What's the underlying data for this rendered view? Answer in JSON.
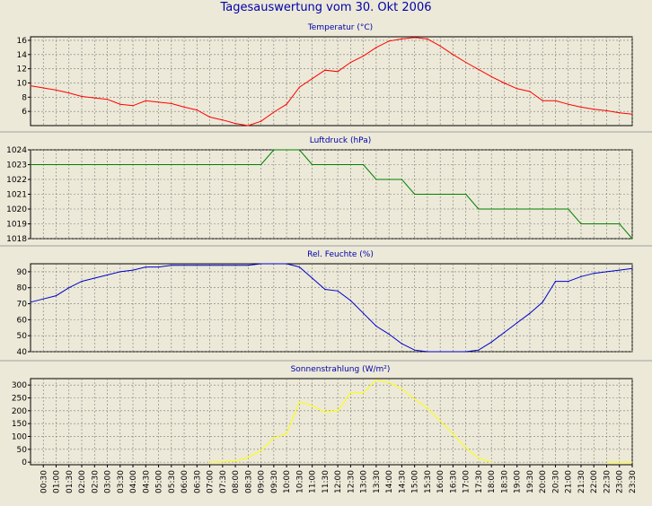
{
  "title": "Tagesauswertung vom 30. Okt 2006",
  "colors": {
    "title": "#0000AA",
    "background": "#ECE9D8",
    "grid": "#7A7A7A"
  },
  "x_tick_labels": [
    "00:30",
    "01:00",
    "01:30",
    "02:00",
    "02:30",
    "03:00",
    "03:30",
    "04:00",
    "04:30",
    "05:00",
    "05:30",
    "06:00",
    "06:30",
    "07:00",
    "07:30",
    "08:00",
    "08:30",
    "09:00",
    "09:30",
    "10:00",
    "10:30",
    "11:00",
    "11:30",
    "12:00",
    "12:30",
    "13:00",
    "13:30",
    "14:00",
    "14:30",
    "15:00",
    "15:30",
    "16:00",
    "16:30",
    "17:00",
    "17:30",
    "18:00",
    "18:30",
    "19:00",
    "19:30",
    "20:00",
    "20:30",
    "21:00",
    "21:30",
    "22:00",
    "22:30",
    "23:00",
    "23:30"
  ],
  "chart_data": [
    {
      "type": "line",
      "title": "Temperatur (°C)",
      "color": "#FF0000",
      "ylim": [
        4,
        16.5
      ],
      "yticks": [
        6,
        8,
        10,
        12,
        14,
        16
      ],
      "grid": true,
      "x": [
        "00:00",
        "00:30",
        "01:00",
        "01:30",
        "02:00",
        "02:30",
        "03:00",
        "03:30",
        "04:00",
        "04:30",
        "05:00",
        "05:30",
        "06:00",
        "06:30",
        "07:00",
        "07:30",
        "08:00",
        "08:30",
        "09:00",
        "09:30",
        "10:00",
        "10:30",
        "11:00",
        "11:30",
        "12:00",
        "12:30",
        "13:00",
        "13:30",
        "14:00",
        "14:30",
        "15:00",
        "15:30",
        "16:00",
        "16:30",
        "17:00",
        "17:30",
        "18:00",
        "18:30",
        "19:00",
        "19:30",
        "20:00",
        "20:30",
        "21:00",
        "21:30",
        "22:00",
        "22:30",
        "23:00",
        "23:30"
      ],
      "values": [
        9.6,
        9.3,
        9.0,
        8.6,
        8.1,
        7.9,
        7.7,
        7.0,
        6.8,
        7.5,
        7.3,
        7.1,
        6.6,
        6.2,
        5.2,
        4.8,
        4.3,
        4.0,
        4.6,
        5.9,
        7.0,
        9.4,
        10.6,
        11.8,
        11.6,
        12.9,
        13.8,
        15.0,
        15.9,
        16.2,
        16.4,
        16.2,
        15.2,
        14.0,
        12.9,
        11.9,
        10.9,
        10.0,
        9.2,
        8.8,
        7.5,
        7.5,
        7.0,
        6.6,
        6.3,
        6.1,
        5.8,
        5.6
      ]
    },
    {
      "type": "line",
      "title": "Luftdruck (hPa)",
      "color": "#008000",
      "ylim": [
        1018,
        1024
      ],
      "yticks": [
        1018,
        1019,
        1020,
        1021,
        1022,
        1023,
        1024
      ],
      "grid": true,
      "x": [
        "00:00",
        "00:30",
        "01:00",
        "01:30",
        "02:00",
        "02:30",
        "03:00",
        "03:30",
        "04:00",
        "04:30",
        "05:00",
        "05:30",
        "06:00",
        "06:30",
        "07:00",
        "07:30",
        "08:00",
        "08:30",
        "09:00",
        "09:30",
        "10:00",
        "10:30",
        "11:00",
        "11:30",
        "12:00",
        "12:30",
        "13:00",
        "13:30",
        "14:00",
        "14:30",
        "15:00",
        "15:30",
        "16:00",
        "16:30",
        "17:00",
        "17:30",
        "18:00",
        "18:30",
        "19:00",
        "19:30",
        "20:00",
        "20:30",
        "21:00",
        "21:30",
        "22:00",
        "22:30",
        "23:00",
        "23:30"
      ],
      "values": [
        1023,
        1023,
        1023,
        1023,
        1023,
        1023,
        1023,
        1023,
        1023,
        1023,
        1023,
        1023,
        1023,
        1023,
        1023,
        1023,
        1023,
        1023,
        1023,
        1024,
        1024,
        1024,
        1023,
        1023,
        1023,
        1023,
        1023,
        1022,
        1022,
        1022,
        1021,
        1021,
        1021,
        1021,
        1021,
        1020,
        1020,
        1020,
        1020,
        1020,
        1020,
        1020,
        1020,
        1019,
        1019,
        1019,
        1019,
        1018
      ]
    },
    {
      "type": "line",
      "title": "Rel. Feuchte (%)",
      "color": "#0000CC",
      "ylim": [
        40,
        95
      ],
      "yticks": [
        40,
        50,
        60,
        70,
        80,
        90
      ],
      "grid": true,
      "x": [
        "00:00",
        "00:30",
        "01:00",
        "01:30",
        "02:00",
        "02:30",
        "03:00",
        "03:30",
        "04:00",
        "04:30",
        "05:00",
        "05:30",
        "06:00",
        "06:30",
        "07:00",
        "07:30",
        "08:00",
        "08:30",
        "09:00",
        "09:30",
        "10:00",
        "10:30",
        "11:00",
        "11:30",
        "12:00",
        "12:30",
        "13:00",
        "13:30",
        "14:00",
        "14:30",
        "15:00",
        "15:30",
        "16:00",
        "16:30",
        "17:00",
        "17:30",
        "18:00",
        "18:30",
        "19:00",
        "19:30",
        "20:00",
        "20:30",
        "21:00",
        "21:30",
        "22:00",
        "22:30",
        "23:00",
        "23:30"
      ],
      "values": [
        71,
        73,
        75,
        80,
        84,
        86,
        88,
        90,
        91,
        93,
        93,
        94,
        94,
        94,
        94,
        94,
        94,
        94,
        95,
        95,
        95,
        93,
        86,
        79,
        78,
        72,
        64,
        56,
        51,
        45,
        41,
        40,
        40,
        40,
        40,
        41,
        46,
        52,
        58,
        64,
        71,
        84,
        84,
        87,
        89,
        90,
        91,
        92
      ]
    },
    {
      "type": "line",
      "title": "Sonnenstrahlung (W/m²)",
      "color": "#FFFF00",
      "ylim": [
        -10,
        325
      ],
      "yticks": [
        0,
        50,
        100,
        150,
        200,
        250,
        300
      ],
      "grid": true,
      "x": [
        "07:00",
        "07:30",
        "08:00",
        "08:30",
        "09:00",
        "09:30",
        "10:00",
        "10:30",
        "11:00",
        "11:30",
        "12:00",
        "12:30",
        "13:00",
        "13:30",
        "14:00",
        "14:30",
        "15:00",
        "15:30",
        "16:00",
        "16:30",
        "17:00",
        "17:30",
        "18:00"
      ],
      "values": [
        0,
        1,
        5,
        18,
        45,
        95,
        110,
        235,
        220,
        195,
        200,
        270,
        270,
        320,
        310,
        285,
        245,
        210,
        160,
        110,
        55,
        15,
        0
      ],
      "x2": [
        "22:30",
        "23:00",
        "23:30"
      ],
      "values2": [
        0,
        0,
        0
      ]
    }
  ]
}
